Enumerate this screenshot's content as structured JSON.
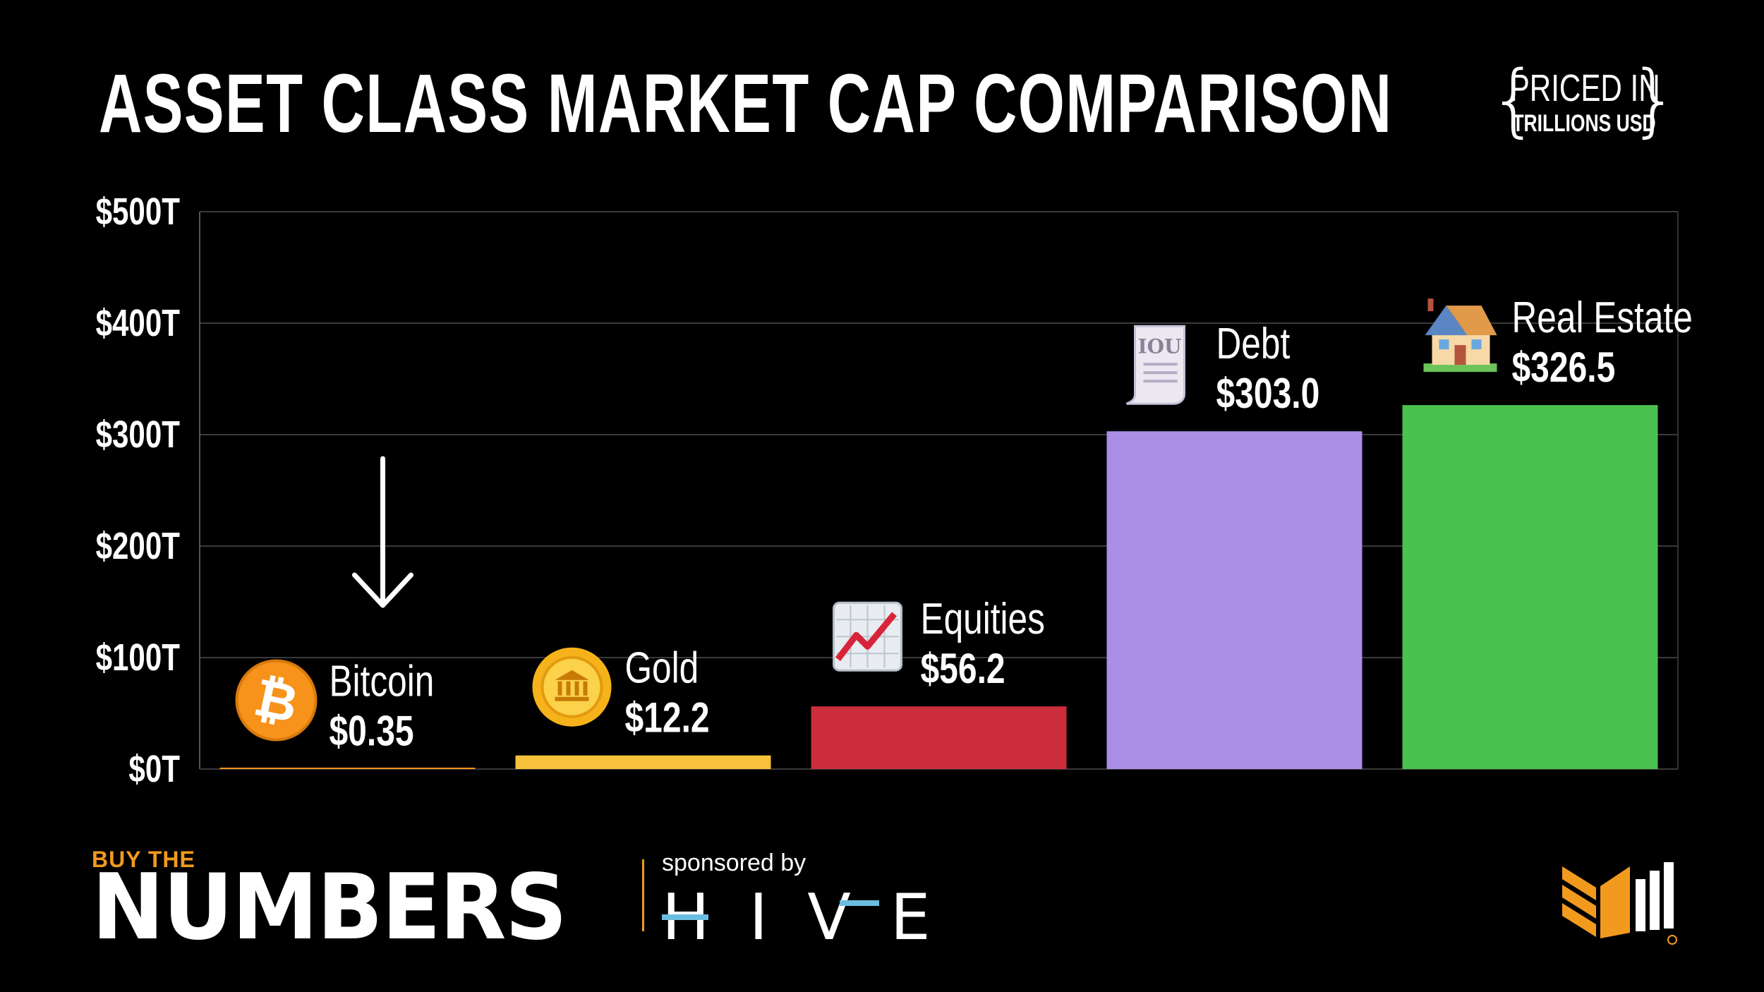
{
  "title": "ASSET CLASS MARKET CAP COMPARISON",
  "subtitle_line1": "PRICED IN",
  "subtitle_line2": "TRILLIONS USD",
  "colors": {
    "background": "#000000",
    "grid": "#3a3a3a",
    "bitcoin": "#f7931a",
    "gold": "#f7c13b",
    "equities": "#cc2d3c",
    "debt": "#aa8ee6",
    "real_estate": "#4bc14f",
    "brand_orange": "#f29a1e",
    "hive_blue": "#6bbde0"
  },
  "chart_data": {
    "type": "bar",
    "categories": [
      "Bitcoin",
      "Gold",
      "Equities",
      "Debt",
      "Real Estate"
    ],
    "values": [
      0.35,
      12.2,
      56.2,
      303.0,
      326.5
    ],
    "value_labels": [
      "$0.35",
      "$12.2",
      "$56.2",
      "$303.0",
      "$326.5"
    ],
    "icons": [
      "bitcoin-coin-icon",
      "gold-bank-coin-icon",
      "chart-increasing-icon",
      "iou-receipt-icon",
      "house-icon"
    ],
    "ylim": [
      0,
      500
    ],
    "y_ticks": [
      0,
      100,
      200,
      300,
      400,
      500
    ],
    "y_tick_labels": [
      "$0T",
      "$100T",
      "$200T",
      "$300T",
      "$400T",
      "$500T"
    ],
    "xlabel": "",
    "ylabel": "",
    "grid": true,
    "annotations": [
      {
        "type": "arrow-down",
        "target": "Bitcoin"
      }
    ]
  },
  "footer": {
    "brand_line1": "BUY THE",
    "brand_line2": "NUMBERS",
    "sponsored_by": "sponsored by",
    "sponsor": "HIVE"
  }
}
